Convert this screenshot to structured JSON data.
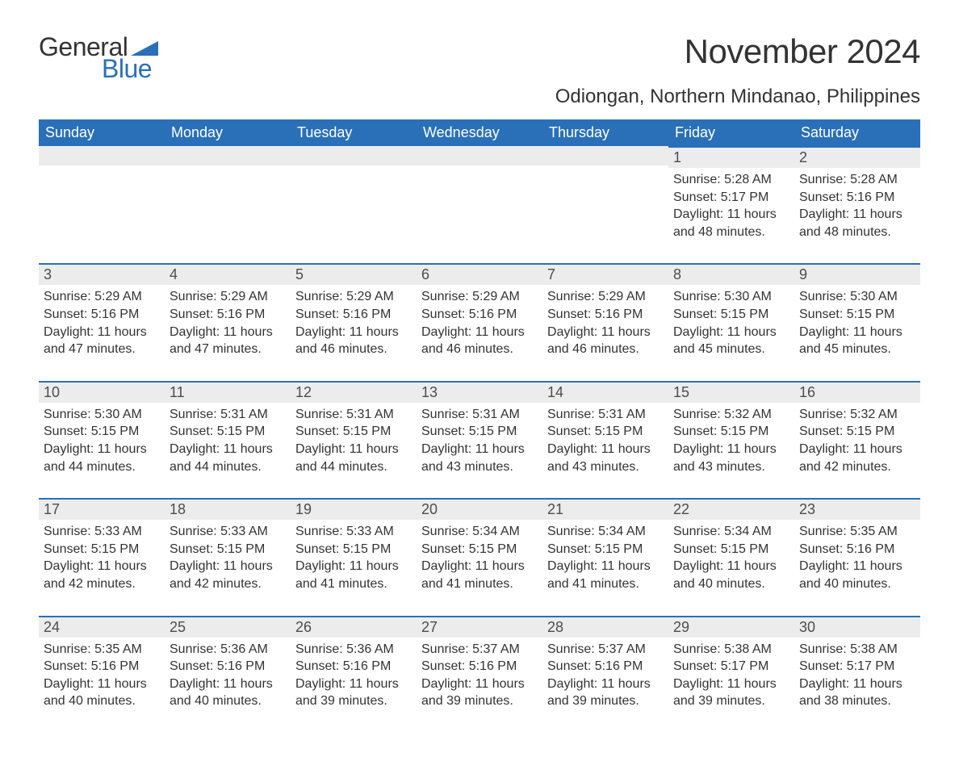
{
  "brand": {
    "part1": "General",
    "part2": "Blue",
    "triangle_color": "#2a70b8"
  },
  "title": "November 2024",
  "location": "Odiongan, Northern Mindanao, Philippines",
  "colors": {
    "header_bg": "#2a70b8",
    "header_text": "#ffffff",
    "daybar_bg": "#ececec",
    "daybar_border": "#2a70b8",
    "body_text": "#333333"
  },
  "layout": {
    "columns": 7,
    "cell_font_size_pt": 12,
    "header_font_size_pt": 14,
    "title_font_size_pt": 32
  },
  "labels": {
    "sunrise": "Sunrise:",
    "sunset": "Sunset:",
    "daylight": "Daylight:"
  },
  "day_names": [
    "Sunday",
    "Monday",
    "Tuesday",
    "Wednesday",
    "Thursday",
    "Friday",
    "Saturday"
  ],
  "weeks": [
    [
      null,
      null,
      null,
      null,
      null,
      {
        "n": "1",
        "sunrise": "5:28 AM",
        "sunset": "5:17 PM",
        "daylight": "11 hours and 48 minutes."
      },
      {
        "n": "2",
        "sunrise": "5:28 AM",
        "sunset": "5:16 PM",
        "daylight": "11 hours and 48 minutes."
      }
    ],
    [
      {
        "n": "3",
        "sunrise": "5:29 AM",
        "sunset": "5:16 PM",
        "daylight": "11 hours and 47 minutes."
      },
      {
        "n": "4",
        "sunrise": "5:29 AM",
        "sunset": "5:16 PM",
        "daylight": "11 hours and 47 minutes."
      },
      {
        "n": "5",
        "sunrise": "5:29 AM",
        "sunset": "5:16 PM",
        "daylight": "11 hours and 46 minutes."
      },
      {
        "n": "6",
        "sunrise": "5:29 AM",
        "sunset": "5:16 PM",
        "daylight": "11 hours and 46 minutes."
      },
      {
        "n": "7",
        "sunrise": "5:29 AM",
        "sunset": "5:16 PM",
        "daylight": "11 hours and 46 minutes."
      },
      {
        "n": "8",
        "sunrise": "5:30 AM",
        "sunset": "5:15 PM",
        "daylight": "11 hours and 45 minutes."
      },
      {
        "n": "9",
        "sunrise": "5:30 AM",
        "sunset": "5:15 PM",
        "daylight": "11 hours and 45 minutes."
      }
    ],
    [
      {
        "n": "10",
        "sunrise": "5:30 AM",
        "sunset": "5:15 PM",
        "daylight": "11 hours and 44 minutes."
      },
      {
        "n": "11",
        "sunrise": "5:31 AM",
        "sunset": "5:15 PM",
        "daylight": "11 hours and 44 minutes."
      },
      {
        "n": "12",
        "sunrise": "5:31 AM",
        "sunset": "5:15 PM",
        "daylight": "11 hours and 44 minutes."
      },
      {
        "n": "13",
        "sunrise": "5:31 AM",
        "sunset": "5:15 PM",
        "daylight": "11 hours and 43 minutes."
      },
      {
        "n": "14",
        "sunrise": "5:31 AM",
        "sunset": "5:15 PM",
        "daylight": "11 hours and 43 minutes."
      },
      {
        "n": "15",
        "sunrise": "5:32 AM",
        "sunset": "5:15 PM",
        "daylight": "11 hours and 43 minutes."
      },
      {
        "n": "16",
        "sunrise": "5:32 AM",
        "sunset": "5:15 PM",
        "daylight": "11 hours and 42 minutes."
      }
    ],
    [
      {
        "n": "17",
        "sunrise": "5:33 AM",
        "sunset": "5:15 PM",
        "daylight": "11 hours and 42 minutes."
      },
      {
        "n": "18",
        "sunrise": "5:33 AM",
        "sunset": "5:15 PM",
        "daylight": "11 hours and 42 minutes."
      },
      {
        "n": "19",
        "sunrise": "5:33 AM",
        "sunset": "5:15 PM",
        "daylight": "11 hours and 41 minutes."
      },
      {
        "n": "20",
        "sunrise": "5:34 AM",
        "sunset": "5:15 PM",
        "daylight": "11 hours and 41 minutes."
      },
      {
        "n": "21",
        "sunrise": "5:34 AM",
        "sunset": "5:15 PM",
        "daylight": "11 hours and 41 minutes."
      },
      {
        "n": "22",
        "sunrise": "5:34 AM",
        "sunset": "5:15 PM",
        "daylight": "11 hours and 40 minutes."
      },
      {
        "n": "23",
        "sunrise": "5:35 AM",
        "sunset": "5:16 PM",
        "daylight": "11 hours and 40 minutes."
      }
    ],
    [
      {
        "n": "24",
        "sunrise": "5:35 AM",
        "sunset": "5:16 PM",
        "daylight": "11 hours and 40 minutes."
      },
      {
        "n": "25",
        "sunrise": "5:36 AM",
        "sunset": "5:16 PM",
        "daylight": "11 hours and 40 minutes."
      },
      {
        "n": "26",
        "sunrise": "5:36 AM",
        "sunset": "5:16 PM",
        "daylight": "11 hours and 39 minutes."
      },
      {
        "n": "27",
        "sunrise": "5:37 AM",
        "sunset": "5:16 PM",
        "daylight": "11 hours and 39 minutes."
      },
      {
        "n": "28",
        "sunrise": "5:37 AM",
        "sunset": "5:16 PM",
        "daylight": "11 hours and 39 minutes."
      },
      {
        "n": "29",
        "sunrise": "5:38 AM",
        "sunset": "5:17 PM",
        "daylight": "11 hours and 39 minutes."
      },
      {
        "n": "30",
        "sunrise": "5:38 AM",
        "sunset": "5:17 PM",
        "daylight": "11 hours and 38 minutes."
      }
    ]
  ]
}
